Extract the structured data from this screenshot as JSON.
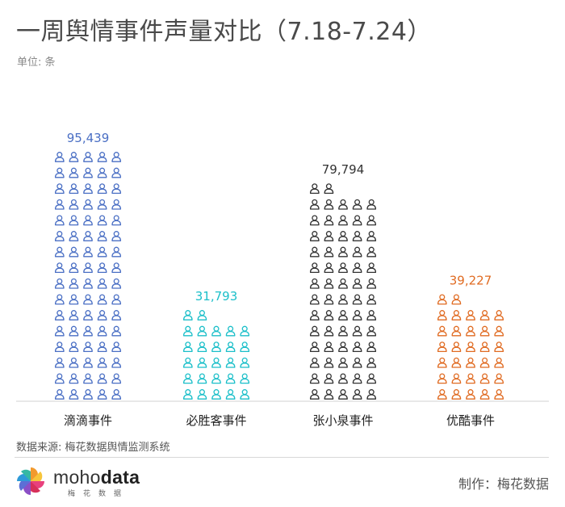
{
  "title": "一周舆情事件声量对比（7.18-7.24）",
  "unit": "单位: 条",
  "source": "数据来源: 梅花数据舆情监测系统",
  "credit": "制作：梅花数据",
  "logo": {
    "word_1": "moho",
    "word_2": "data",
    "sub": "梅花数据"
  },
  "chart_data": {
    "type": "bar",
    "style": "pictograph",
    "icon": "person-icon",
    "categories": [
      "滴滴事件",
      "必胜客事件",
      "张小泉事件",
      "优酷事件"
    ],
    "values": [
      95439,
      31793,
      79794,
      39227
    ],
    "value_labels": [
      "95,439",
      "31,793",
      "79,794",
      "39,227"
    ],
    "colors": [
      "#4a6fc4",
      "#1bbfc9",
      "#333333",
      "#e06b22"
    ],
    "icons_per_row": 5,
    "icon_counts": [
      80,
      27,
      67,
      32
    ],
    "title": "一周舆情事件声量对比（7.18-7.24）",
    "ylabel": "单位: 条",
    "legend": "none",
    "grid": false
  }
}
